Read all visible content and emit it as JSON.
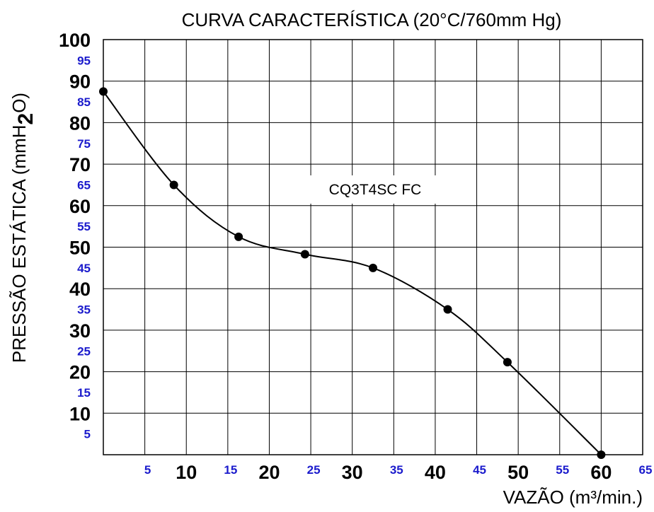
{
  "chart_data": {
    "type": "line",
    "title": "CURVA CARACTERÍSTICA (20°C/760mm Hg)",
    "xlabel": "VAZÃO (m³/min.)",
    "ylabel_main": "PRESSÃO ESTÁTICA (mmH",
    "ylabel_sub": "2",
    "ylabel_end": "O)",
    "annotation": "CQ3T4SC FC",
    "xlim": [
      0,
      65
    ],
    "ylim": [
      0,
      100
    ],
    "grid": true,
    "x_ticks": [
      {
        "value": 5,
        "label": "5",
        "style": "minor"
      },
      {
        "value": 10,
        "label": "10",
        "style": "major"
      },
      {
        "value": 15,
        "label": "15",
        "style": "minor"
      },
      {
        "value": 20,
        "label": "20",
        "style": "major"
      },
      {
        "value": 25,
        "label": "25",
        "style": "minor"
      },
      {
        "value": 30,
        "label": "30",
        "style": "major"
      },
      {
        "value": 35,
        "label": "35",
        "style": "minor"
      },
      {
        "value": 40,
        "label": "40",
        "style": "major"
      },
      {
        "value": 45,
        "label": "45",
        "style": "minor"
      },
      {
        "value": 50,
        "label": "50",
        "style": "major"
      },
      {
        "value": 55,
        "label": "55",
        "style": "minor"
      },
      {
        "value": 60,
        "label": "60",
        "style": "major"
      },
      {
        "value": 65,
        "label": "65",
        "style": "minor"
      }
    ],
    "y_ticks": [
      {
        "value": 5,
        "label": "5",
        "style": "minor"
      },
      {
        "value": 10,
        "label": "10",
        "style": "major"
      },
      {
        "value": 15,
        "label": "15",
        "style": "minor"
      },
      {
        "value": 20,
        "label": "20",
        "style": "major"
      },
      {
        "value": 25,
        "label": "25",
        "style": "minor"
      },
      {
        "value": 30,
        "label": "30",
        "style": "major"
      },
      {
        "value": 35,
        "label": "35",
        "style": "minor"
      },
      {
        "value": 40,
        "label": "40",
        "style": "major"
      },
      {
        "value": 45,
        "label": "45",
        "style": "minor"
      },
      {
        "value": 50,
        "label": "50",
        "style": "major"
      },
      {
        "value": 55,
        "label": "55",
        "style": "minor"
      },
      {
        "value": 60,
        "label": "60",
        "style": "major"
      },
      {
        "value": 65,
        "label": "65",
        "style": "minor"
      },
      {
        "value": 70,
        "label": "70",
        "style": "major"
      },
      {
        "value": 75,
        "label": "75",
        "style": "minor"
      },
      {
        "value": 80,
        "label": "80",
        "style": "major"
      },
      {
        "value": 85,
        "label": "85",
        "style": "minor"
      },
      {
        "value": 90,
        "label": "90",
        "style": "major"
      },
      {
        "value": 95,
        "label": "95",
        "style": "minor"
      },
      {
        "value": 100,
        "label": "100",
        "style": "major"
      }
    ],
    "series": [
      {
        "points": [
          {
            "x": 0,
            "y": 87.5
          },
          {
            "x": 8.5,
            "y": 65
          },
          {
            "x": 16.3,
            "y": 52.5
          },
          {
            "x": 24.3,
            "y": 48.3
          },
          {
            "x": 32.5,
            "y": 45
          },
          {
            "x": 41.5,
            "y": 35
          },
          {
            "x": 48.7,
            "y": 22.3
          },
          {
            "x": 60,
            "y": 0
          }
        ]
      }
    ],
    "colors": {
      "major_tick": "#000000",
      "minor_tick": "#1a1acc",
      "line": "#000000",
      "marker": "#000000",
      "grid": "#000000"
    }
  }
}
